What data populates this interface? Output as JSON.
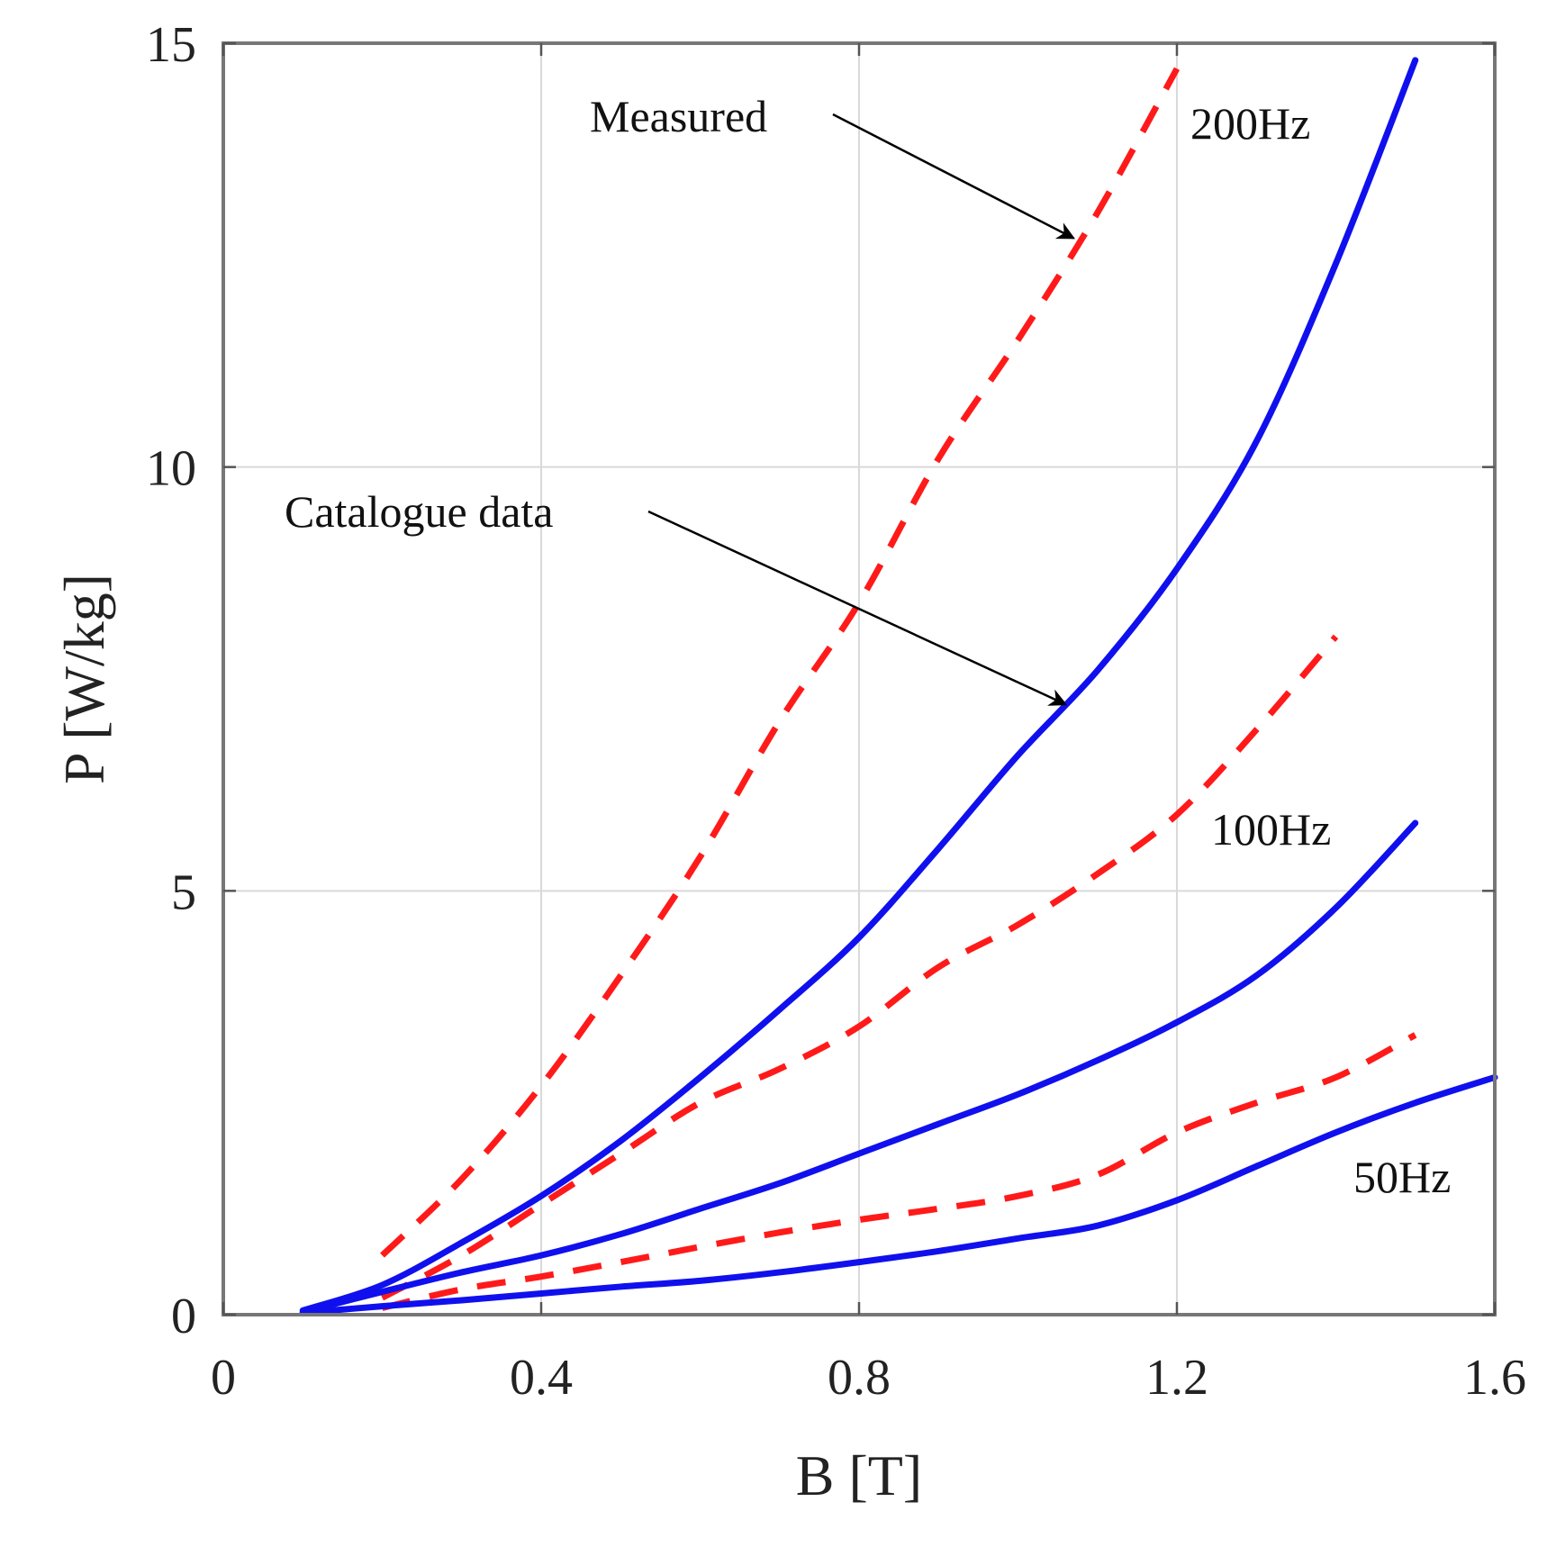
{
  "chart_data": {
    "type": "line",
    "title": "",
    "xlabel": "B [T]",
    "ylabel": "P [W/kg]",
    "xlim": [
      0,
      1.6
    ],
    "ylim": [
      0,
      15
    ],
    "xticks": [
      0,
      0.4,
      0.8,
      1.2,
      1.6
    ],
    "xtick_labels": [
      "0",
      "0.4",
      "0.8",
      "1.2",
      "1.6"
    ],
    "yticks": [
      0,
      5,
      10,
      15
    ],
    "ytick_labels": [
      "0",
      "5",
      "10",
      "15"
    ],
    "grid": true,
    "series": [
      {
        "name": "Measured 200Hz",
        "style": "dashed",
        "color": "#ff1a1a",
        "x": [
          0.2,
          0.3,
          0.4,
          0.5,
          0.6,
          0.7,
          0.8,
          0.9,
          1.0,
          1.1,
          1.2
        ],
        "y": [
          0.7,
          1.6,
          2.7,
          4.0,
          5.4,
          7.0,
          8.4,
          10.1,
          11.5,
          13.0,
          14.7
        ]
      },
      {
        "name": "Measured 100Hz",
        "style": "dashed",
        "color": "#ff1a1a",
        "x": [
          0.2,
          0.3,
          0.4,
          0.5,
          0.6,
          0.7,
          0.8,
          0.9,
          1.0,
          1.1,
          1.2,
          1.3,
          1.4
        ],
        "y": [
          0.2,
          0.7,
          1.3,
          1.9,
          2.5,
          2.9,
          3.4,
          4.1,
          4.6,
          5.2,
          5.9,
          6.9,
          8.0
        ]
      },
      {
        "name": "Measured 50Hz",
        "style": "dashed",
        "color": "#ff1a1a",
        "x": [
          0.2,
          0.3,
          0.4,
          0.5,
          0.6,
          0.7,
          0.8,
          0.9,
          1.0,
          1.1,
          1.2,
          1.3,
          1.4,
          1.5
        ],
        "y": [
          0.08,
          0.3,
          0.45,
          0.62,
          0.8,
          0.97,
          1.12,
          1.25,
          1.4,
          1.65,
          2.15,
          2.5,
          2.8,
          3.3
        ]
      },
      {
        "name": "Catalogue data 200Hz",
        "style": "solid",
        "color": "#1010ee",
        "x": [
          0.1,
          0.2,
          0.3,
          0.4,
          0.5,
          0.6,
          0.7,
          0.8,
          0.9,
          1.0,
          1.1,
          1.2,
          1.3,
          1.4,
          1.5
        ],
        "y": [
          0.05,
          0.35,
          0.85,
          1.4,
          2.05,
          2.8,
          3.6,
          4.45,
          5.5,
          6.6,
          7.6,
          8.8,
          10.3,
          12.4,
          14.8
        ]
      },
      {
        "name": "Catalogue data 100Hz",
        "style": "solid",
        "color": "#1010ee",
        "x": [
          0.1,
          0.2,
          0.3,
          0.4,
          0.5,
          0.6,
          0.7,
          0.8,
          0.9,
          1.0,
          1.1,
          1.2,
          1.3,
          1.4,
          1.5
        ],
        "y": [
          0.03,
          0.27,
          0.5,
          0.7,
          0.95,
          1.25,
          1.55,
          1.9,
          2.25,
          2.6,
          3.0,
          3.45,
          4.0,
          4.8,
          5.8
        ]
      },
      {
        "name": "Catalogue data 50Hz",
        "style": "solid",
        "color": "#1010ee",
        "x": [
          0.1,
          0.2,
          0.3,
          0.4,
          0.5,
          0.6,
          0.7,
          0.8,
          0.9,
          1.0,
          1.1,
          1.2,
          1.3,
          1.4,
          1.5,
          1.6
        ],
        "y": [
          0.02,
          0.1,
          0.17,
          0.25,
          0.33,
          0.4,
          0.5,
          0.62,
          0.75,
          0.9,
          1.05,
          1.35,
          1.75,
          2.15,
          2.5,
          2.8
        ]
      }
    ],
    "annotations": [
      {
        "text": "Measured",
        "pos": "upper-center",
        "arrow_to": {
          "x": 1.07,
          "y": 12.7
        }
      },
      {
        "text": "Catalogue data",
        "pos": "center-left",
        "arrow_to": {
          "x": 1.06,
          "y": 7.2
        }
      },
      {
        "text": "200Hz",
        "pos": "top-right"
      },
      {
        "text": "100Hz",
        "pos": "middle-right"
      },
      {
        "text": "50Hz",
        "pos": "lower-right"
      }
    ]
  }
}
